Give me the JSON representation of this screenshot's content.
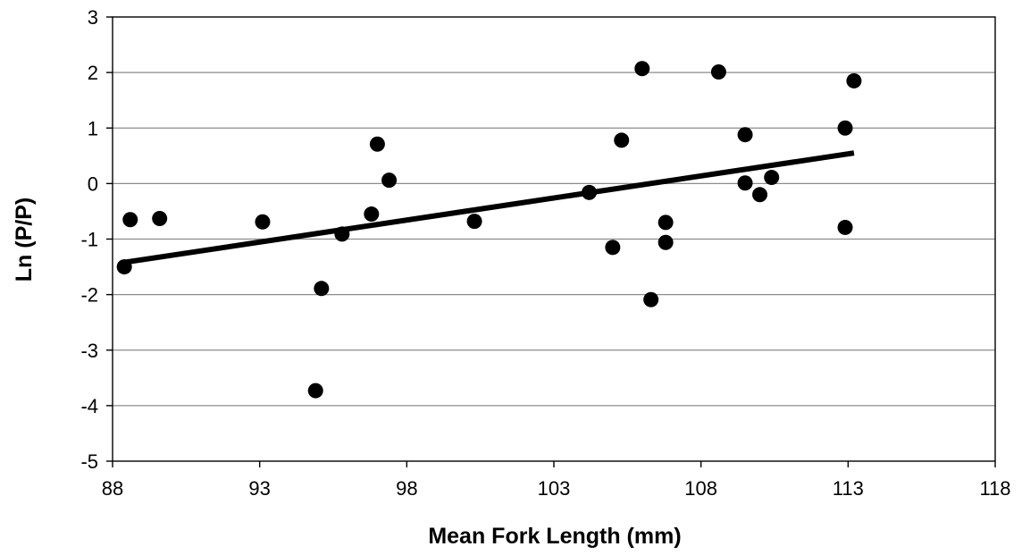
{
  "chart_data": {
    "type": "scatter",
    "xlabel": "Mean Fork Length (mm)",
    "ylabel": "Ln (P/P)",
    "xlim": [
      88,
      118
    ],
    "ylim": [
      -5,
      3
    ],
    "x_ticks": [
      "88",
      "93",
      "98",
      "103",
      "108",
      "113",
      "118"
    ],
    "y_ticks": [
      "3",
      "2",
      "1",
      "0",
      "-1",
      "-2",
      "-3",
      "-4",
      "-5"
    ],
    "grid": "horizontal",
    "legend": "none",
    "points": [
      {
        "x": 88.4,
        "y": -1.5
      },
      {
        "x": 88.6,
        "y": -0.65
      },
      {
        "x": 89.6,
        "y": -0.63
      },
      {
        "x": 93.1,
        "y": -0.69
      },
      {
        "x": 94.9,
        "y": -3.73
      },
      {
        "x": 95.1,
        "y": -1.89
      },
      {
        "x": 95.8,
        "y": -0.91
      },
      {
        "x": 96.8,
        "y": -0.55
      },
      {
        "x": 97.0,
        "y": 0.71
      },
      {
        "x": 97.4,
        "y": 0.06
      },
      {
        "x": 100.3,
        "y": -0.68
      },
      {
        "x": 104.2,
        "y": -0.16
      },
      {
        "x": 105.0,
        "y": -1.15
      },
      {
        "x": 105.3,
        "y": 0.78
      },
      {
        "x": 106.0,
        "y": 2.07
      },
      {
        "x": 106.3,
        "y": -2.09
      },
      {
        "x": 106.8,
        "y": -0.7
      },
      {
        "x": 106.8,
        "y": -1.06
      },
      {
        "x": 108.6,
        "y": 2.01
      },
      {
        "x": 109.5,
        "y": 0.88
      },
      {
        "x": 109.5,
        "y": 0.01
      },
      {
        "x": 110.0,
        "y": -0.2
      },
      {
        "x": 110.4,
        "y": 0.11
      },
      {
        "x": 112.9,
        "y": 1.0
      },
      {
        "x": 112.9,
        "y": -0.79
      },
      {
        "x": 113.2,
        "y": 1.85
      }
    ],
    "trendline": {
      "x": [
        88.4,
        113.2
      ],
      "y": [
        -1.42,
        0.55
      ]
    }
  }
}
